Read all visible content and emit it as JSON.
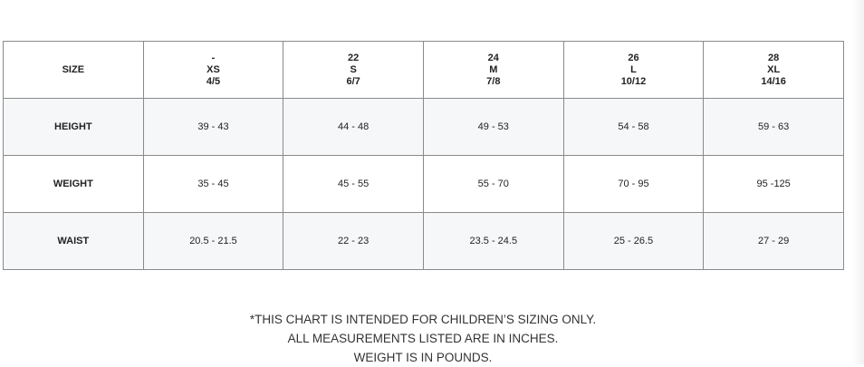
{
  "table": {
    "header": {
      "label": "SIZE",
      "columns": [
        [
          "-",
          "XS",
          "4/5"
        ],
        [
          "22",
          "S",
          "6/7"
        ],
        [
          "24",
          "M",
          "7/8"
        ],
        [
          "26",
          "L",
          "10/12"
        ],
        [
          "28",
          "XL",
          "14/16"
        ]
      ]
    },
    "rows": [
      {
        "label": "HEIGHT",
        "values": [
          "39 - 43",
          "44 - 48",
          "49 - 53",
          "54 - 58",
          "59 - 63"
        ]
      },
      {
        "label": "WEIGHT",
        "values": [
          "35 - 45",
          "45 - 55",
          "55 - 70",
          "70 - 95",
          "95 -125"
        ]
      },
      {
        "label": "WAIST",
        "values": [
          "20.5 - 21.5",
          "22 - 23",
          "23.5 - 24.5",
          "25 - 26.5",
          "27 - 29"
        ]
      }
    ]
  },
  "notes": [
    "*THIS CHART IS INTENDED FOR CHILDREN’S SIZING ONLY.",
    "ALL MEASUREMENTS LISTED ARE IN INCHES.",
    "WEIGHT IS IN POUNDS."
  ]
}
